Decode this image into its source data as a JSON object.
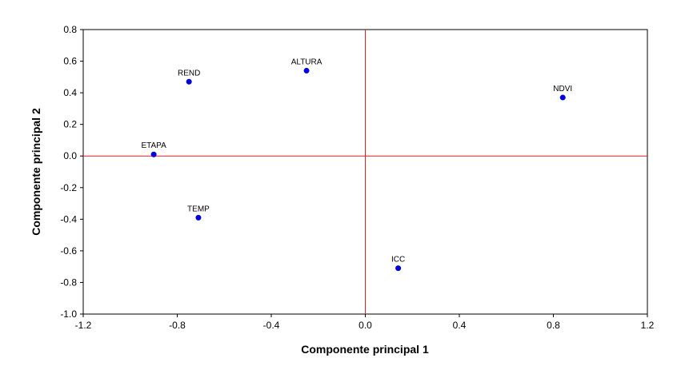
{
  "chart_data": {
    "type": "scatter",
    "title": "",
    "xlabel": "Componente principal 1",
    "ylabel": "Componente principal 2",
    "xlim": [
      -1.2,
      1.2
    ],
    "ylim": [
      -1.0,
      0.8
    ],
    "xticks": [
      "-1.2",
      "-0.8",
      "-0.4",
      "0.0",
      "0.4",
      "0.8",
      "1.2"
    ],
    "yticks": [
      "0.8",
      "0.6",
      "0.4",
      "0.2",
      "0.0",
      "-0.2",
      "-0.4",
      "-0.6",
      "-0.8",
      "-1.0"
    ],
    "grid": false,
    "reference_lines": {
      "x": 0.0,
      "y": 0.0,
      "color": "#e02020"
    },
    "marker_color": "#0000e0",
    "points": [
      {
        "label": "REND",
        "x": -0.75,
        "y": 0.47
      },
      {
        "label": "ALTURA",
        "x": -0.25,
        "y": 0.54
      },
      {
        "label": "NDVI",
        "x": 0.84,
        "y": 0.37
      },
      {
        "label": "ETAPA",
        "x": -0.9,
        "y": 0.01
      },
      {
        "label": "TEMP",
        "x": -0.71,
        "y": -0.39
      },
      {
        "label": "ICC",
        "x": 0.14,
        "y": -0.71
      }
    ]
  }
}
